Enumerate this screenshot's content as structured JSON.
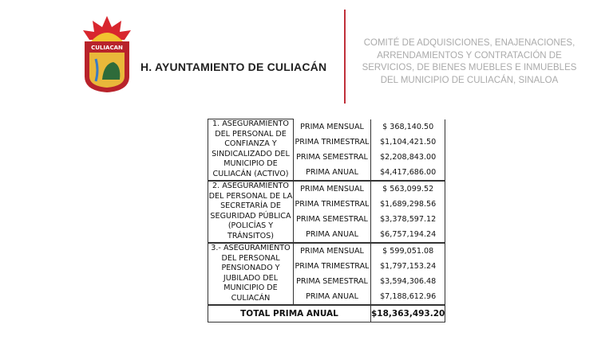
{
  "header": {
    "logo_text": "CULIACAN",
    "organization": "H. AYUNTAMIENTO DE CULIACÁN",
    "committee_lines": [
      "COMITÉ DE ADQUISICIONES, ENAJENACIONES,",
      "ARRENDAMIENTOS Y CONTRATACIÓN DE",
      "SERVICIOS, DE BIENES MUEBLES E INMUEBLES",
      "DEL MUNICIPIO DE CULIACÁN, SINALOA"
    ]
  },
  "table": {
    "groups": [
      {
        "label": "1. ASEGURAMIENTO DEL PERSONAL DE CONFIANZA Y SINDICALIZADO DEL MUNICIPIO DE CULIACÁN (ACTIVO)",
        "rows": [
          {
            "kind": "PRIMA MENSUAL",
            "amount": "$ 368,140.50"
          },
          {
            "kind": "PRIMA TRIMESTRAL",
            "amount": "$1,104,421.50"
          },
          {
            "kind": "PRIMA SEMESTRAL",
            "amount": "$2,208,843.00"
          },
          {
            "kind": "PRIMA ANUAL",
            "amount": "$4,417,686.00"
          }
        ]
      },
      {
        "label": "2. ASEGURAMIENTO DEL PERSONAL DE LA SECRETARÍA DE SEGURIDAD PÚBLICA (POLICÍAS Y TRÁNSITOS)",
        "rows": [
          {
            "kind": "PRIMA MENSUAL",
            "amount": "$ 563,099.52"
          },
          {
            "kind": "PRIMA TRIMESTRAL",
            "amount": "$1,689,298.56"
          },
          {
            "kind": "PRIMA SEMESTRAL",
            "amount": "$3,378,597.12"
          },
          {
            "kind": "PRIMA ANUAL",
            "amount": "$6,757,194.24"
          }
        ]
      },
      {
        "label": "3.- ASEGURAMIENTO DEL PERSONAL PENSIONADO Y JUBILADO DEL MUNICIPIO DE CULIACÁN",
        "rows": [
          {
            "kind": "PRIMA MENSUAL",
            "amount": "$ 599,051.08"
          },
          {
            "kind": "PRIMA TRIMESTRAL",
            "amount": "$1,797,153.24"
          },
          {
            "kind": "PRIMA SEMESTRAL",
            "amount": "$3,594,306.48"
          },
          {
            "kind": "PRIMA ANUAL",
            "amount": "$7,188,612.96"
          }
        ]
      }
    ],
    "total_label": "TOTAL PRIMA ANUAL",
    "total_amount": "$18,363,493.20"
  }
}
